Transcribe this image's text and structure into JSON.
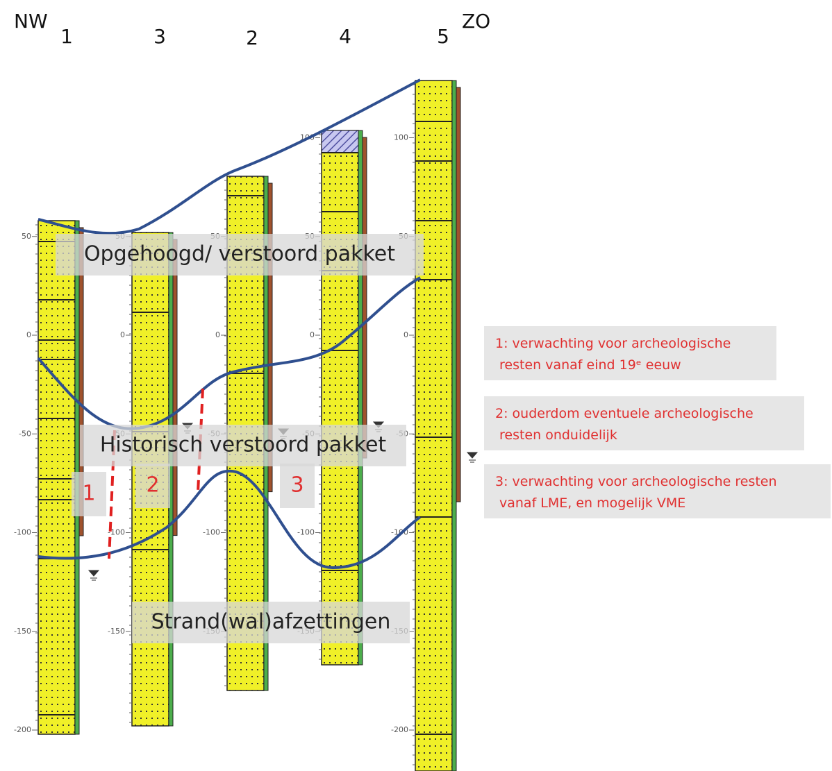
{
  "header": {
    "left": "NW",
    "right": "ZO"
  },
  "boreholes": [
    {
      "label": "1",
      "ticks": [
        50,
        0,
        -50,
        -100,
        -150,
        -200
      ]
    },
    {
      "label": "3",
      "ticks": [
        50,
        0,
        -50,
        -100,
        -150
      ]
    },
    {
      "label": "2",
      "ticks": [
        50,
        0,
        -50,
        -100,
        -150
      ]
    },
    {
      "label": "4",
      "ticks": [
        100,
        50,
        0,
        -50,
        -100,
        -150
      ]
    },
    {
      "label": "5",
      "ticks": [
        100,
        50,
        0,
        -50,
        -100,
        -150,
        -200
      ]
    }
  ],
  "layers": [
    "Opgehoogd/ verstoord pakket",
    "Historisch verstoord pakket",
    "Strand(wal)afzettingen"
  ],
  "zones": [
    "1",
    "2",
    "3"
  ],
  "notes": [
    {
      "lines": [
        "1: verwachting voor archeologische",
        "resten vanaf eind 19ᵉ eeuw"
      ]
    },
    {
      "lines": [
        "2: ouderdom  eventuele archeologische",
        "resten onduidelijk"
      ]
    },
    {
      "lines": [
        "3: verwachting voor archeologische resten",
        "vanaf LME, en mogelijk VME"
      ]
    }
  ]
}
